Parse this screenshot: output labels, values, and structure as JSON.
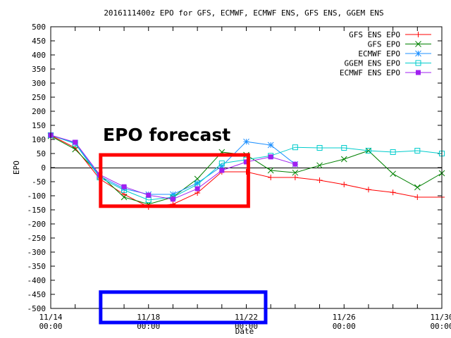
{
  "chart_data": {
    "type": "line",
    "title": "2016111400z EPO for GFS, ECMWF, ECMWF ENS, GFS ENS, GGEM ENS",
    "xlabel": "Date",
    "ylabel": "EPO",
    "x_range": [
      "2016-11-14 00:00",
      "2016-11-30 00:00"
    ],
    "ylim": [
      -500,
      500
    ],
    "y_ticks": [
      500,
      450,
      400,
      350,
      300,
      250,
      200,
      150,
      100,
      50,
      0,
      -50,
      -100,
      -150,
      -200,
      -250,
      -300,
      -350,
      -400,
      -450,
      -500
    ],
    "x_ticks": [
      {
        "date": "2016-11-14 00:00",
        "line1": "11/14",
        "line2": "00:00"
      },
      {
        "date": "2016-11-18 00:00",
        "line1": "11/18",
        "line2": "00:00"
      },
      {
        "date": "2016-11-22 00:00",
        "line1": "11/22",
        "line2": "00:00"
      },
      {
        "date": "2016-11-26 00:00",
        "line1": "11/26",
        "line2": "00:00"
      },
      {
        "date": "2016-11-30 00:00",
        "line1": "11/30",
        "line2": "00:00"
      }
    ],
    "zero_line": true,
    "grid": false,
    "legend_position": "top-right",
    "series": [
      {
        "name": "GFS ENS EPO",
        "color": "#ff0000",
        "marker": "plus",
        "points": [
          [
            "2016-11-14 00:00",
            115
          ],
          [
            "2016-11-15 00:00",
            70
          ],
          [
            "2016-11-16 00:00",
            -40
          ],
          [
            "2016-11-17 00:00",
            -95
          ],
          [
            "2016-11-18 00:00",
            -140
          ],
          [
            "2016-11-19 00:00",
            -130
          ],
          [
            "2016-11-20 00:00",
            -90
          ],
          [
            "2016-11-21 00:00",
            -15
          ],
          [
            "2016-11-22 00:00",
            -15
          ],
          [
            "2016-11-23 00:00",
            -35
          ],
          [
            "2016-11-24 00:00",
            -35
          ],
          [
            "2016-11-25 00:00",
            -45
          ],
          [
            "2016-11-26 00:00",
            -60
          ],
          [
            "2016-11-27 00:00",
            -78
          ],
          [
            "2016-11-28 00:00",
            -88
          ],
          [
            "2016-11-29 00:00",
            -105
          ],
          [
            "2016-11-30 00:00",
            -105
          ]
        ]
      },
      {
        "name": "GFS EPO",
        "color": "#008000",
        "marker": "x",
        "points": [
          [
            "2016-11-14 00:00",
            112
          ],
          [
            "2016-11-15 00:00",
            65
          ],
          [
            "2016-11-16 00:00",
            -25
          ],
          [
            "2016-11-17 00:00",
            -105
          ],
          [
            "2016-11-18 00:00",
            -130
          ],
          [
            "2016-11-19 00:00",
            -105
          ],
          [
            "2016-11-20 00:00",
            -40
          ],
          [
            "2016-11-21 00:00",
            55
          ],
          [
            "2016-11-22 00:00",
            45
          ],
          [
            "2016-11-23 00:00",
            -10
          ],
          [
            "2016-11-24 00:00",
            -18
          ],
          [
            "2016-11-25 00:00",
            8
          ],
          [
            "2016-11-26 00:00",
            30
          ],
          [
            "2016-11-27 00:00",
            60
          ],
          [
            "2016-11-28 00:00",
            -22
          ],
          [
            "2016-11-29 00:00",
            -70
          ],
          [
            "2016-11-30 00:00",
            -20
          ]
        ]
      },
      {
        "name": "ECMWF EPO",
        "color": "#1e90ff",
        "marker": "star",
        "points": [
          [
            "2016-11-14 00:00",
            115
          ],
          [
            "2016-11-15 00:00",
            88
          ],
          [
            "2016-11-16 00:00",
            -30
          ],
          [
            "2016-11-17 00:00",
            -75
          ],
          [
            "2016-11-18 00:00",
            -95
          ],
          [
            "2016-11-19 00:00",
            -95
          ],
          [
            "2016-11-20 00:00",
            -55
          ],
          [
            "2016-11-21 00:00",
            5
          ],
          [
            "2016-11-22 00:00",
            92
          ],
          [
            "2016-11-23 00:00",
            80
          ],
          [
            "2016-11-24 00:00",
            12
          ]
        ]
      },
      {
        "name": "GGEM ENS EPO",
        "color": "#00cccc",
        "marker": "square-open",
        "points": [
          [
            "2016-11-14 00:00",
            115
          ],
          [
            "2016-11-15 00:00",
            85
          ],
          [
            "2016-11-16 00:00",
            -35
          ],
          [
            "2016-11-17 00:00",
            -80
          ],
          [
            "2016-11-18 00:00",
            -115
          ],
          [
            "2016-11-19 00:00",
            -105
          ],
          [
            "2016-11-20 00:00",
            -60
          ],
          [
            "2016-11-21 00:00",
            15
          ],
          [
            "2016-11-22 00:00",
            28
          ],
          [
            "2016-11-23 00:00",
            42
          ],
          [
            "2016-11-24 00:00",
            72
          ],
          [
            "2016-11-25 00:00",
            70
          ],
          [
            "2016-11-26 00:00",
            70
          ],
          [
            "2016-11-27 00:00",
            60
          ],
          [
            "2016-11-28 00:00",
            55
          ],
          [
            "2016-11-29 00:00",
            60
          ],
          [
            "2016-11-30 00:00",
            50
          ]
        ]
      },
      {
        "name": "ECMWF ENS EPO",
        "color": "#a020f0",
        "marker": "square-filled",
        "points": [
          [
            "2016-11-14 00:00",
            115
          ],
          [
            "2016-11-15 00:00",
            90
          ],
          [
            "2016-11-16 00:00",
            -25
          ],
          [
            "2016-11-17 00:00",
            -68
          ],
          [
            "2016-11-18 00:00",
            -98
          ],
          [
            "2016-11-19 00:00",
            -112
          ],
          [
            "2016-11-20 00:00",
            -75
          ],
          [
            "2016-11-21 00:00",
            -10
          ],
          [
            "2016-11-22 00:00",
            20
          ],
          [
            "2016-11-23 00:00",
            38
          ],
          [
            "2016-11-24 00:00",
            12
          ]
        ]
      }
    ],
    "annotation_text": "EPO forecast",
    "highlight_boxes": [
      {
        "color": "#ff0000",
        "x_from": "2016-11-16 01:00",
        "x_to": "2016-11-22 02:00",
        "y_from": 45,
        "y_to": -137
      },
      {
        "color": "#0000ff",
        "x_from": "2016-11-16 01:00",
        "x_to": "2016-11-22 19:00",
        "y_from": -442,
        "y_to": -550
      }
    ]
  }
}
